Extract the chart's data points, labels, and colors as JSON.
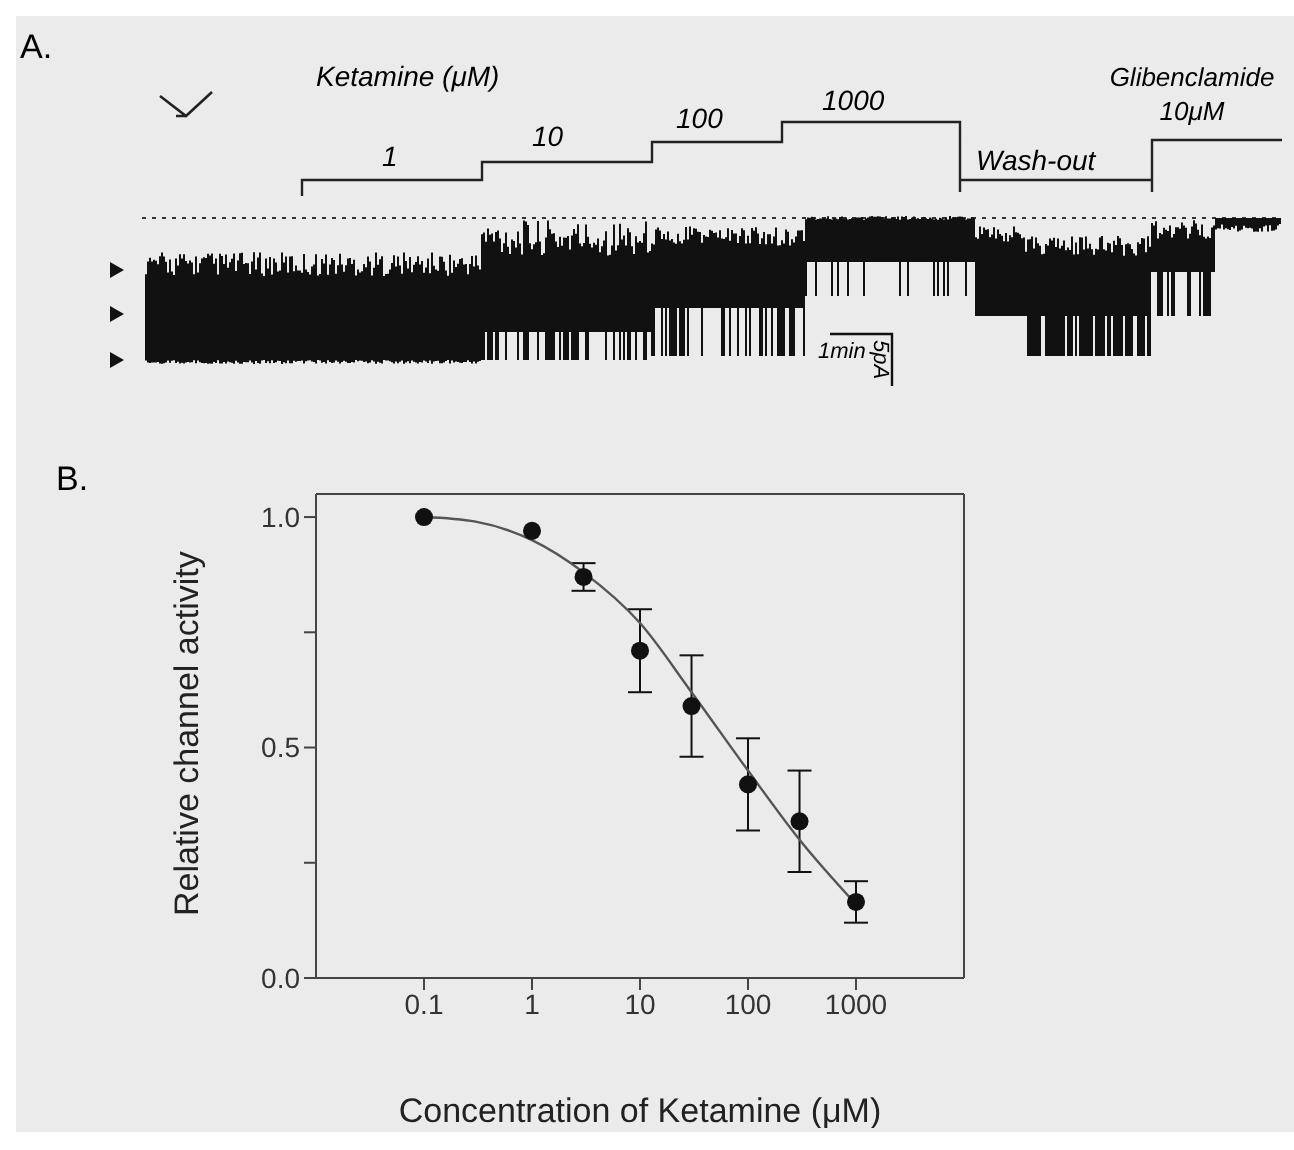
{
  "chart_data": [
    {
      "type": "other",
      "title": "A.",
      "annotations": [
        "Ketamine (μM)",
        "1",
        "10",
        "100",
        "1000",
        "Wash-out",
        "Glibenclamide 10μM",
        "1min",
        "5pA"
      ]
    },
    {
      "type": "scatter",
      "title": "B.",
      "xlabel": "Concentration of Ketamine (μM)",
      "ylabel": "Relative channel activity",
      "log": "x",
      "xlim": [
        0.01,
        10000
      ],
      "xticks": [
        0.1,
        1,
        10,
        100,
        1000
      ],
      "ylim": [
        0,
        1.05
      ],
      "yticks": [
        {
          "value": 0,
          "label": "0.0"
        },
        {
          "value": 0.25,
          "label": null
        },
        {
          "value": 0.5,
          "label": "0.5"
        },
        {
          "value": 0.75,
          "label": null
        },
        {
          "value": 1,
          "label": "1.0"
        }
      ],
      "series": [
        {
          "type": "scatter",
          "marker": "circle",
          "color": "#111111",
          "x": [
            0.1,
            1,
            3,
            10,
            30,
            100,
            300,
            1000
          ],
          "values": [
            1.0,
            0.97,
            0.87,
            0.71,
            0.59,
            0.42,
            0.34,
            0.165
          ],
          "errors": [
            null,
            null,
            [
              0.84,
              0.9
            ],
            [
              0.62,
              0.8
            ],
            [
              0.48,
              0.7
            ],
            [
              0.32,
              0.52
            ],
            [
              0.23,
              0.45
            ],
            [
              0.12,
              0.21
            ]
          ]
        },
        {
          "type": "line",
          "marker": "none",
          "color": "#555555",
          "x": [
            0.1,
            0.3,
            1,
            3,
            10,
            30,
            100,
            300,
            1000
          ],
          "values": [
            1.0,
            0.99,
            0.95,
            0.88,
            0.77,
            0.62,
            0.45,
            0.3,
            0.16
          ]
        }
      ]
    }
  ]
}
